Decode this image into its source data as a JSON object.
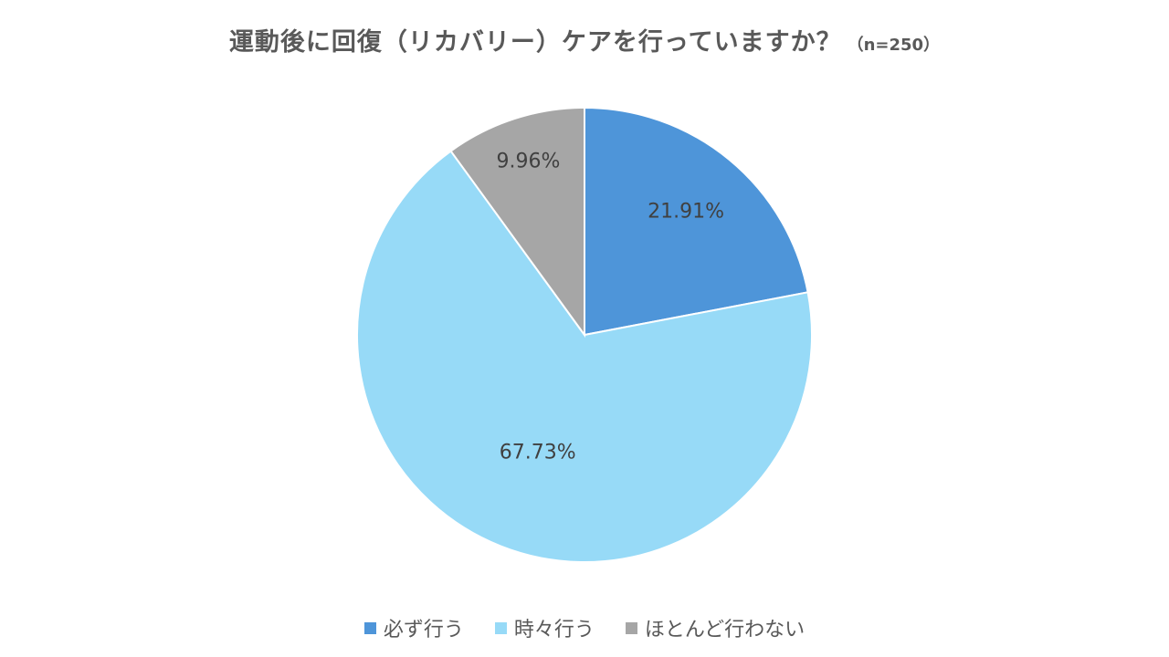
{
  "chart_data": {
    "type": "pie",
    "title": "運動後に回復（リカバリー）ケアを行っていますか？",
    "sample_note": "（n=250）",
    "categories": [
      "必ず行う",
      "時々行う",
      "ほとんど行わない"
    ],
    "values": [
      21.91,
      67.73,
      9.96
    ],
    "data_labels": [
      "21.91%",
      "67.73%",
      "9.96%"
    ],
    "colors": [
      "#4e95d9",
      "#97daf7",
      "#a6a6a6"
    ],
    "legend_position": "bottom",
    "start_angle": "12 o'clock",
    "direction": "clockwise"
  }
}
